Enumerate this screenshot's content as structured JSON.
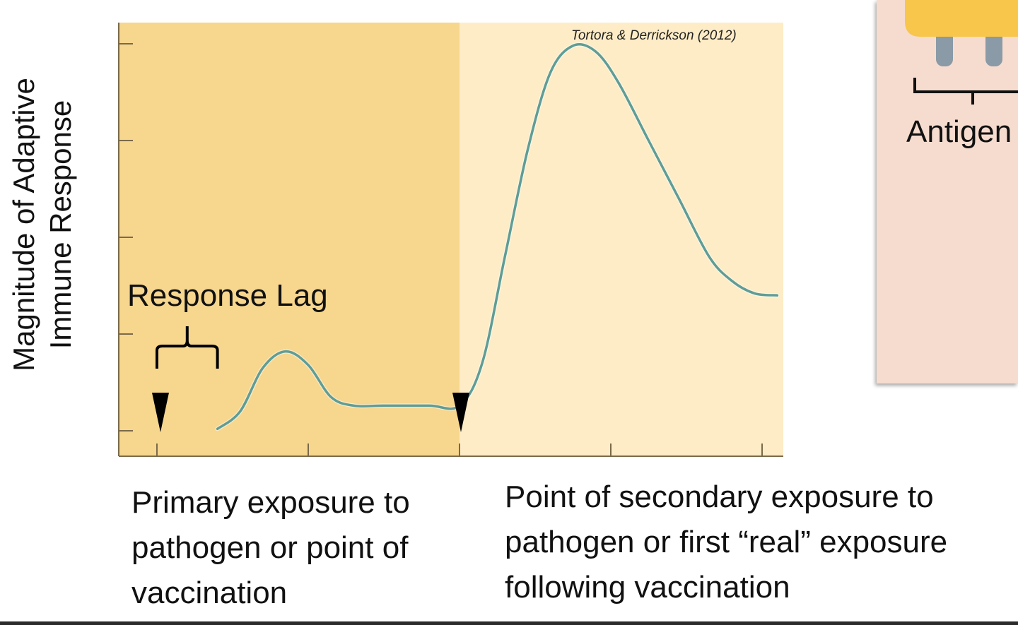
{
  "chart_data": {
    "type": "line",
    "ylabel_lines": [
      "Magnitude of Adaptive",
      "Immune Response"
    ],
    "credit": "Tortora & Derrickson (2012)",
    "annotations": {
      "response_lag": "Response Lag",
      "primary_exposure": [
        "Primary exposure to",
        "pathogen or point of",
        "vaccination"
      ],
      "secondary_exposure": [
        "Point of secondary exposure to",
        "pathogen or first “real” exposure",
        "following vaccination"
      ]
    },
    "x_range": [
      0,
      4.2
    ],
    "y_range": [
      0,
      4.3
    ],
    "x_ticks": [
      0,
      1,
      2,
      3,
      4
    ],
    "y_ticks": [
      0,
      1,
      2,
      3,
      4
    ],
    "primary_exposure_x": 0,
    "secondary_exposure_x": 2,
    "lag_end_x": 0.4,
    "series": [
      {
        "x": [
          0.4,
          0.55,
          0.7,
          0.85,
          1.0,
          1.15,
          1.3,
          1.5,
          1.8,
          2.0,
          2.15,
          2.3,
          2.45,
          2.6,
          2.75,
          2.9,
          3.05,
          3.25,
          3.45,
          3.65,
          3.8,
          3.95,
          4.1
        ],
        "y": [
          0.02,
          0.2,
          0.65,
          0.82,
          0.68,
          0.35,
          0.26,
          0.26,
          0.26,
          0.26,
          0.7,
          1.8,
          2.9,
          3.7,
          3.98,
          3.92,
          3.6,
          3.0,
          2.4,
          1.8,
          1.55,
          1.42,
          1.4
        ]
      }
    ],
    "colors": {
      "shade_primary": "#f7d68e",
      "shade_secondary": "#fdecc6",
      "curve": "#5f9d96",
      "axis": "#7a6a4a",
      "marker": "#000000"
    }
  },
  "side_panel": {
    "label": "Antigen",
    "colors": {
      "panel": "#f6dccf",
      "blob": "#f7c64a",
      "legs": "#8a9aa6"
    }
  }
}
